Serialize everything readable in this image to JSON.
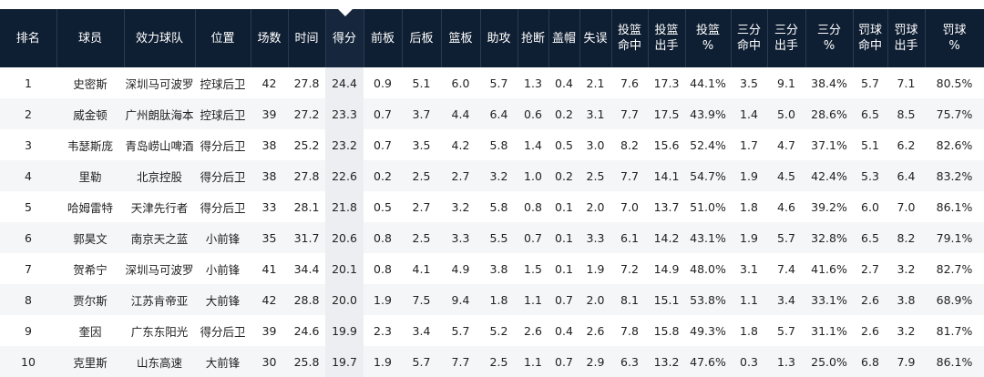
{
  "table": {
    "headers": [
      [
        "排名"
      ],
      [
        "球员"
      ],
      [
        "效力球队"
      ],
      [
        "位置"
      ],
      [
        "场数"
      ],
      [
        "时间"
      ],
      [
        "得分"
      ],
      [
        "前板"
      ],
      [
        "后板"
      ],
      [
        "篮板"
      ],
      [
        "助攻"
      ],
      [
        "抢断"
      ],
      [
        "盖帽"
      ],
      [
        "失误"
      ],
      [
        "投篮",
        "命中"
      ],
      [
        "投篮",
        "出手"
      ],
      [
        "投篮",
        "%"
      ],
      [
        "三分",
        "命中"
      ],
      [
        "三分",
        "出手"
      ],
      [
        "三分",
        "%"
      ],
      [
        "罚球",
        "命中"
      ],
      [
        "罚球",
        "出手"
      ],
      [
        "罚球",
        "%"
      ]
    ],
    "rows": [
      [
        "1",
        "史密斯",
        "深圳马可波罗",
        "控球后卫",
        "42",
        "27.8",
        "24.4",
        "0.9",
        "5.1",
        "6.0",
        "5.7",
        "1.3",
        "0.4",
        "2.1",
        "7.6",
        "17.3",
        "44.1%",
        "3.5",
        "9.1",
        "38.4%",
        "5.7",
        "7.1",
        "80.5%"
      ],
      [
        "2",
        "威金顿",
        "广州朗肽海本",
        "控球后卫",
        "39",
        "27.2",
        "23.3",
        "0.7",
        "3.7",
        "4.4",
        "6.4",
        "0.6",
        "0.2",
        "3.1",
        "7.7",
        "17.5",
        "43.9%",
        "1.4",
        "5.0",
        "28.6%",
        "6.5",
        "8.5",
        "75.7%"
      ],
      [
        "3",
        "韦瑟斯庞",
        "青岛崂山啤酒",
        "得分后卫",
        "38",
        "25.2",
        "23.2",
        "0.7",
        "3.5",
        "4.2",
        "5.8",
        "1.4",
        "0.5",
        "3.0",
        "8.2",
        "15.6",
        "52.4%",
        "1.7",
        "4.7",
        "37.1%",
        "5.1",
        "6.2",
        "82.6%"
      ],
      [
        "4",
        "里勒",
        "北京控股",
        "得分后卫",
        "38",
        "27.8",
        "22.6",
        "0.2",
        "2.5",
        "2.7",
        "3.2",
        "1.0",
        "0.2",
        "2.5",
        "7.7",
        "14.1",
        "54.7%",
        "1.9",
        "4.5",
        "42.4%",
        "5.3",
        "6.4",
        "83.2%"
      ],
      [
        "5",
        "哈姆雷特",
        "天津先行者",
        "得分后卫",
        "33",
        "28.1",
        "21.8",
        "0.5",
        "2.7",
        "3.2",
        "5.8",
        "0.8",
        "0.1",
        "2.0",
        "7.0",
        "13.7",
        "51.0%",
        "1.8",
        "4.6",
        "39.2%",
        "6.0",
        "7.0",
        "86.1%"
      ],
      [
        "6",
        "郭昊文",
        "南京天之蓝",
        "小前锋",
        "35",
        "31.7",
        "20.6",
        "0.8",
        "2.5",
        "3.3",
        "5.5",
        "0.7",
        "0.1",
        "3.3",
        "6.1",
        "14.2",
        "43.1%",
        "1.9",
        "5.7",
        "32.8%",
        "6.5",
        "8.2",
        "79.1%"
      ],
      [
        "7",
        "贺希宁",
        "深圳马可波罗",
        "小前锋",
        "41",
        "34.4",
        "20.1",
        "0.8",
        "4.1",
        "4.9",
        "3.8",
        "1.5",
        "0.1",
        "1.9",
        "7.2",
        "14.9",
        "48.0%",
        "3.1",
        "7.4",
        "41.6%",
        "2.7",
        "3.2",
        "82.7%"
      ],
      [
        "8",
        "贾尔斯",
        "江苏肯帝亚",
        "大前锋",
        "42",
        "28.8",
        "20.0",
        "1.9",
        "7.5",
        "9.4",
        "1.8",
        "1.1",
        "0.7",
        "2.0",
        "8.1",
        "15.1",
        "53.8%",
        "1.1",
        "3.4",
        "33.1%",
        "2.6",
        "3.8",
        "68.9%"
      ],
      [
        "9",
        "奎因",
        "广东东阳光",
        "得分后卫",
        "39",
        "24.6",
        "19.9",
        "2.3",
        "3.4",
        "5.7",
        "5.2",
        "2.6",
        "0.4",
        "2.6",
        "7.8",
        "15.8",
        "49.3%",
        "1.8",
        "5.7",
        "31.1%",
        "2.6",
        "3.2",
        "81.7%"
      ],
      [
        "10",
        "克里斯",
        "山东高速",
        "大前锋",
        "30",
        "25.8",
        "19.7",
        "1.9",
        "5.7",
        "7.7",
        "2.5",
        "1.1",
        "0.7",
        "2.9",
        "6.3",
        "13.2",
        "47.6%",
        "0.3",
        "1.3",
        "25.0%",
        "6.8",
        "7.9",
        "86.1%"
      ]
    ]
  }
}
